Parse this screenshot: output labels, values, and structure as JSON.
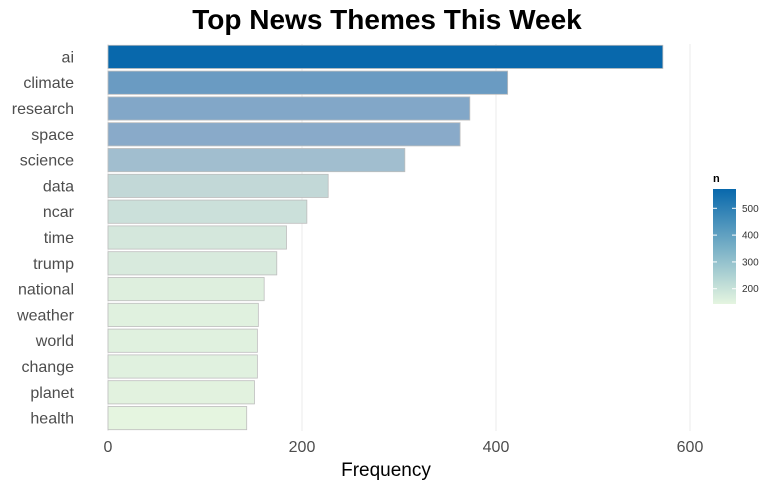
{
  "chart_data": {
    "type": "bar",
    "orientation": "horizontal",
    "title": "Top News Themes This Week",
    "xlabel": "Frequency",
    "ylabel": "",
    "categories": [
      "ai",
      "climate",
      "research",
      "space",
      "science",
      "data",
      "ncar",
      "time",
      "trump",
      "national",
      "weather",
      "world",
      "change",
      "planet",
      "health"
    ],
    "values": [
      572,
      412,
      373,
      363,
      306,
      227,
      205,
      184,
      174,
      161,
      155,
      154,
      154,
      151,
      143
    ],
    "xlim": [
      0,
      600
    ],
    "x_ticks": [
      {
        "value": 0,
        "label": "0"
      },
      {
        "value": 200,
        "label": "200"
      },
      {
        "value": 400,
        "label": "400"
      },
      {
        "value": 600,
        "label": "600"
      }
    ],
    "grid": true,
    "legend": {
      "title": "n",
      "placement": "right",
      "type": "colorbar",
      "range": [
        143,
        572
      ],
      "low_color": "#e5f5e0",
      "high_color": "#0868ac",
      "ticks": [
        {
          "value": 500,
          "label": "500"
        },
        {
          "value": 400,
          "label": "400"
        },
        {
          "value": 300,
          "label": "300"
        },
        {
          "value": 200,
          "label": "200"
        }
      ]
    }
  }
}
